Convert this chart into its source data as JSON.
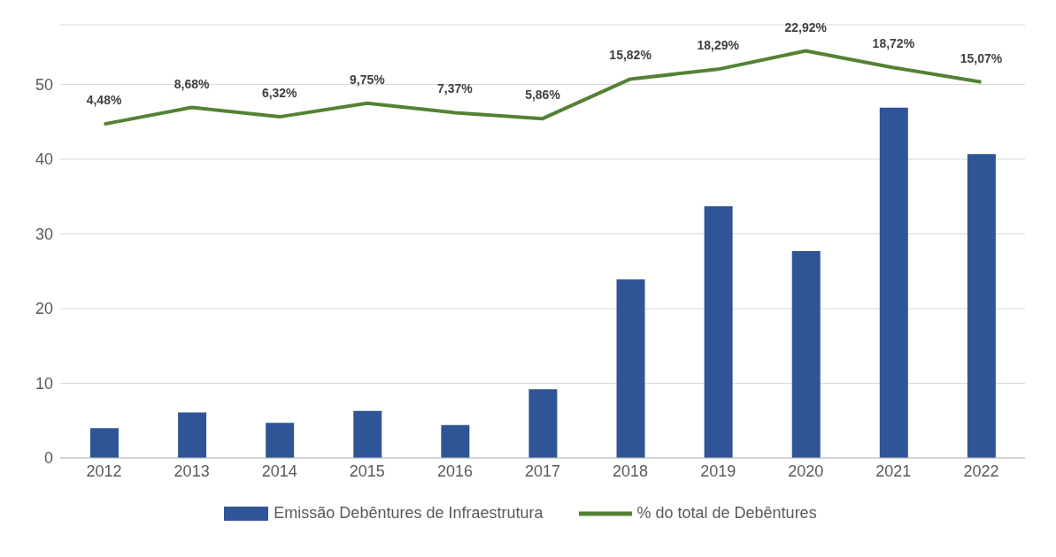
{
  "chart_data": {
    "type": "bar",
    "categories": [
      "2012",
      "2013",
      "2014",
      "2015",
      "2016",
      "2017",
      "2018",
      "2019",
      "2020",
      "2021",
      "2022"
    ],
    "series": [
      {
        "name": "Emissão Debêntures de Infraestrutura",
        "color": "#2f5597",
        "values": [
          4.0,
          6.1,
          4.7,
          6.3,
          4.4,
          9.2,
          23.9,
          33.7,
          27.7,
          46.9,
          40.7
        ]
      },
      {
        "name": "% do total de Debêntures",
        "type": "line",
        "axis": "y2",
        "color": "#548235",
        "marker": "none",
        "values": [
          4.48,
          8.68,
          6.32,
          9.75,
          7.37,
          5.86,
          15.82,
          18.29,
          22.92,
          18.72,
          15.07
        ],
        "value_labels": [
          "4,48%",
          "8,68%",
          "6,32%",
          "9,75%",
          "7,37%",
          "5,86%",
          "15,82%",
          "18,29%",
          "22,92%",
          "18,72%",
          "15,07%"
        ]
      }
    ],
    "ylim": [
      0,
      58
    ],
    "yticks": [
      0,
      10,
      20,
      30,
      40,
      50
    ],
    "y2lim": [
      -79.6,
      29.5
    ],
    "tick_labels": [
      "x",
      "y"
    ],
    "grid": "y",
    "legend": "bottom"
  }
}
